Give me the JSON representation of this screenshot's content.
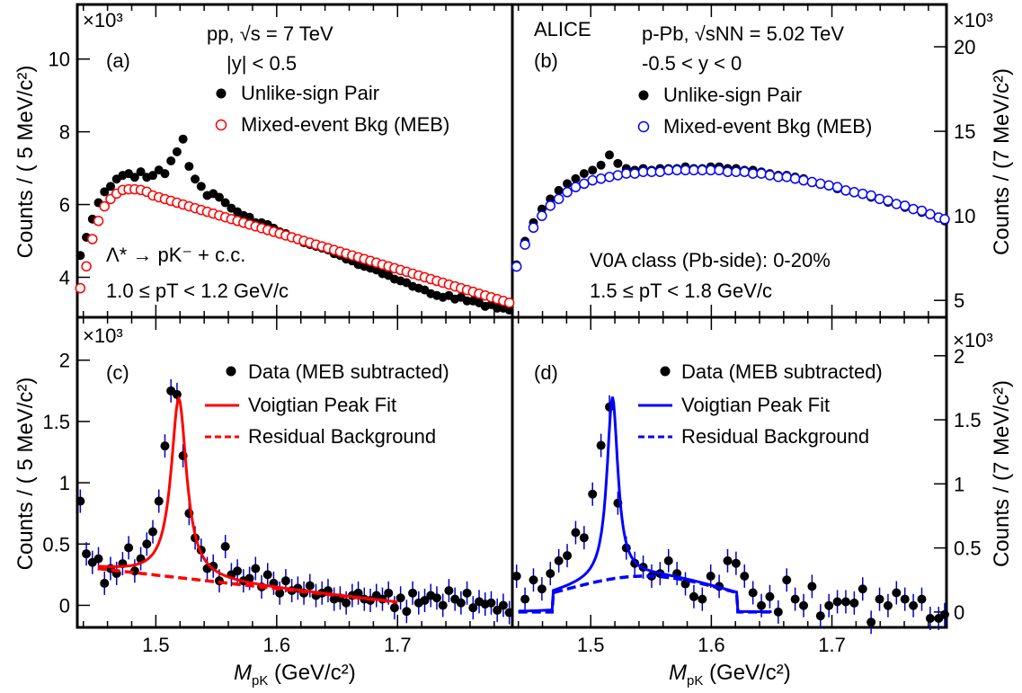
{
  "figure": {
    "experiment": "ALICE",
    "ylabel_left": "Counts / ( 5 MeV/c²)",
    "ylabel_right": "Counts / (7 MeV/c²)",
    "xlabel": "M_pK (GeV/c²)",
    "xlabel_main": "M",
    "xlabel_sub": "pK",
    "xlabel_unit": " (GeV/c²)",
    "yexp": "×10³"
  },
  "panels": {
    "a": {
      "tag": "(a)",
      "line1": "pp, √s = 7 TeV",
      "line2": "|y| < 0.5",
      "legend": [
        "Unlike-sign Pair",
        "Mixed-event Bkg (MEB)"
      ],
      "reaction": "Λ* → pK⁻ + c.c.",
      "pt_range": "1.0 ≤ pT < 1.2 GeV/c"
    },
    "b": {
      "tag": "(b)",
      "line1": "p-Pb, √sNN = 5.02 TeV",
      "line2": "-0.5 < y < 0",
      "legend": [
        "Unlike-sign Pair",
        "Mixed-event Bkg (MEB)"
      ],
      "centrality": "V0A class (Pb-side): 0-20%",
      "pt_range": "1.5 ≤ pT < 1.8 GeV/c"
    },
    "c": {
      "tag": "(c)",
      "legend": [
        "Data (MEB subtracted)",
        "Voigtian Peak Fit",
        "Residual Background"
      ]
    },
    "d": {
      "tag": "(d)",
      "legend": [
        "Data (MEB subtracted)",
        "Voigtian Peak Fit",
        "Residual Background"
      ]
    }
  },
  "colors": {
    "pp": "#ff0000",
    "ppb": "#0000ff",
    "data": "#000000",
    "err": "#0000cc"
  },
  "chart_data": [
    {
      "panel": "a",
      "type": "scatter",
      "xlim": [
        1.435,
        1.795
      ],
      "ylim": [
        2.9,
        11.5
      ],
      "yunit": "x10^3",
      "yticks": [
        4,
        6,
        8,
        10
      ],
      "series": [
        {
          "name": "Unlike-sign Pair",
          "marker": "filled",
          "color": "#000000",
          "x": [
            1.4375,
            1.4425,
            1.4475,
            1.4525,
            1.4575,
            1.4625,
            1.4675,
            1.4725,
            1.4775,
            1.4825,
            1.4875,
            1.4925,
            1.4975,
            1.5025,
            1.5075,
            1.5125,
            1.5175,
            1.5225,
            1.5275,
            1.5325,
            1.5375,
            1.5425,
            1.5475,
            1.5525,
            1.5575,
            1.5625,
            1.5675,
            1.5725,
            1.5775,
            1.5825,
            1.5875,
            1.5925,
            1.5975,
            1.6025,
            1.6075,
            1.6125,
            1.6175,
            1.6225,
            1.6275,
            1.6325,
            1.6375,
            1.6425,
            1.6475,
            1.6525,
            1.6575,
            1.6625,
            1.6675,
            1.6725,
            1.6775,
            1.6825,
            1.6875,
            1.6925,
            1.6975,
            1.7025,
            1.7075,
            1.7125,
            1.7175,
            1.7225,
            1.7275,
            1.7325,
            1.7375,
            1.7425,
            1.7475,
            1.7525,
            1.7575,
            1.7625,
            1.7675,
            1.7725,
            1.7775,
            1.7825,
            1.7875,
            1.7925
          ],
          "y": [
            4.6,
            5.1,
            5.6,
            6.05,
            6.35,
            6.5,
            6.7,
            6.8,
            6.85,
            6.75,
            6.9,
            6.75,
            6.8,
            6.95,
            6.85,
            7.2,
            7.45,
            7.8,
            7.05,
            6.7,
            6.5,
            6.25,
            6.3,
            6.2,
            6.05,
            5.9,
            5.8,
            5.7,
            5.65,
            5.5,
            5.5,
            5.45,
            5.35,
            5.25,
            5.2,
            5.1,
            5.05,
            4.95,
            4.9,
            4.85,
            4.8,
            4.75,
            4.65,
            4.6,
            4.5,
            4.45,
            4.35,
            4.3,
            4.25,
            4.2,
            4.1,
            4.05,
            3.95,
            3.9,
            3.85,
            3.75,
            3.7,
            3.65,
            3.55,
            3.5,
            3.45,
            3.5,
            3.4,
            3.45,
            3.35,
            3.35,
            3.3,
            3.2,
            3.25,
            3.15,
            3.15,
            3.1
          ]
        },
        {
          "name": "Mixed-event Bkg (MEB)",
          "marker": "open",
          "color": "#ff0000",
          "x": [
            1.4375,
            1.4425,
            1.4475,
            1.4525,
            1.4575,
            1.4625,
            1.4675,
            1.4725,
            1.4775,
            1.4825,
            1.4875,
            1.4925,
            1.4975,
            1.5025,
            1.5075,
            1.5125,
            1.5175,
            1.5225,
            1.5275,
            1.5325,
            1.5375,
            1.5425,
            1.5475,
            1.5525,
            1.5575,
            1.5625,
            1.5675,
            1.5725,
            1.5775,
            1.5825,
            1.5875,
            1.5925,
            1.5975,
            1.6025,
            1.6075,
            1.6125,
            1.6175,
            1.6225,
            1.6275,
            1.6325,
            1.6375,
            1.6425,
            1.6475,
            1.6525,
            1.6575,
            1.6625,
            1.6675,
            1.6725,
            1.6775,
            1.6825,
            1.6875,
            1.6925,
            1.6975,
            1.7025,
            1.7075,
            1.7125,
            1.7175,
            1.7225,
            1.7275,
            1.7325,
            1.7375,
            1.7425,
            1.7475,
            1.7525,
            1.7575,
            1.7625,
            1.7675,
            1.7725,
            1.7775,
            1.7825,
            1.7875,
            1.7925
          ],
          "y": [
            3.7,
            4.3,
            5.05,
            5.55,
            5.95,
            6.15,
            6.3,
            6.4,
            6.42,
            6.42,
            6.4,
            6.35,
            6.25,
            6.2,
            6.15,
            6.1,
            6.05,
            6.0,
            5.95,
            5.9,
            5.85,
            5.8,
            5.75,
            5.7,
            5.65,
            5.6,
            5.55,
            5.5,
            5.45,
            5.4,
            5.35,
            5.3,
            5.25,
            5.2,
            5.15,
            5.1,
            5.05,
            5.0,
            4.95,
            4.9,
            4.85,
            4.8,
            4.75,
            4.7,
            4.65,
            4.6,
            4.55,
            4.5,
            4.45,
            4.4,
            4.35,
            4.3,
            4.25,
            4.2,
            4.15,
            4.1,
            4.05,
            4.0,
            3.95,
            3.9,
            3.85,
            3.8,
            3.75,
            3.7,
            3.65,
            3.6,
            3.55,
            3.5,
            3.45,
            3.4,
            3.35,
            3.3
          ]
        }
      ]
    },
    {
      "panel": "b",
      "type": "scatter",
      "xlim": [
        1.435,
        1.795
      ],
      "ylim": [
        4.0,
        22.5
      ],
      "yunit": "x10^3",
      "yticks": [
        5,
        10,
        15,
        20
      ],
      "series": [
        {
          "name": "Unlike-sign Pair",
          "marker": "filled",
          "color": "#000000",
          "x": [
            1.4385,
            1.4455,
            1.4525,
            1.4595,
            1.4665,
            1.4735,
            1.4805,
            1.4875,
            1.4945,
            1.5015,
            1.5085,
            1.5155,
            1.5225,
            1.5295,
            1.5365,
            1.5435,
            1.5505,
            1.5575,
            1.5645,
            1.5715,
            1.5785,
            1.5855,
            1.5925,
            1.5995,
            1.6065,
            1.6135,
            1.6205,
            1.6275,
            1.6345,
            1.6415,
            1.6485,
            1.6555,
            1.6625,
            1.6695,
            1.6765,
            1.6835,
            1.6905,
            1.6975,
            1.7045,
            1.7115,
            1.7185,
            1.7255,
            1.7325,
            1.7395,
            1.7465,
            1.7535,
            1.7605,
            1.7675,
            1.7745,
            1.7815,
            1.7885,
            1.7935
          ],
          "y": [
            7.1,
            8.5,
            9.6,
            10.4,
            11.0,
            11.5,
            11.9,
            12.2,
            12.5,
            12.7,
            13.0,
            13.6,
            13.1,
            12.8,
            12.7,
            12.8,
            12.7,
            12.8,
            12.8,
            12.8,
            12.9,
            12.8,
            12.8,
            12.9,
            12.9,
            12.8,
            12.8,
            12.7,
            12.7,
            12.6,
            12.5,
            12.4,
            12.4,
            12.3,
            12.2,
            12.0,
            11.9,
            11.8,
            11.6,
            11.5,
            11.4,
            11.3,
            11.1,
            11.0,
            10.8,
            10.7,
            10.5,
            10.4,
            10.2,
            10.1,
            9.9,
            9.7
          ]
        },
        {
          "name": "Mixed-event Bkg (MEB)",
          "marker": "open",
          "color": "#0000ff",
          "x": [
            1.4385,
            1.4455,
            1.4525,
            1.4595,
            1.4665,
            1.4735,
            1.4805,
            1.4875,
            1.4945,
            1.5015,
            1.5085,
            1.5155,
            1.5225,
            1.5295,
            1.5365,
            1.5435,
            1.5505,
            1.5575,
            1.5645,
            1.5715,
            1.5785,
            1.5855,
            1.5925,
            1.5995,
            1.6065,
            1.6135,
            1.6205,
            1.6275,
            1.6345,
            1.6415,
            1.6485,
            1.6555,
            1.6625,
            1.6695,
            1.6765,
            1.6835,
            1.6905,
            1.6975,
            1.7045,
            1.7115,
            1.7185,
            1.7255,
            1.7325,
            1.7395,
            1.7465,
            1.7535,
            1.7605,
            1.7675,
            1.7745,
            1.7815,
            1.7885,
            1.7935
          ],
          "y": [
            7.0,
            8.3,
            9.3,
            10.0,
            10.6,
            11.0,
            11.4,
            11.7,
            11.9,
            12.1,
            12.2,
            12.3,
            12.4,
            12.5,
            12.5,
            12.6,
            12.6,
            12.6,
            12.7,
            12.7,
            12.7,
            12.7,
            12.7,
            12.7,
            12.7,
            12.6,
            12.6,
            12.6,
            12.5,
            12.5,
            12.4,
            12.3,
            12.3,
            12.2,
            12.1,
            12.0,
            11.9,
            11.8,
            11.7,
            11.5,
            11.4,
            11.3,
            11.2,
            11.0,
            10.9,
            10.7,
            10.6,
            10.4,
            10.3,
            10.1,
            9.9,
            9.8
          ]
        }
      ]
    },
    {
      "panel": "c",
      "type": "scatter",
      "xlim": [
        1.435,
        1.795
      ],
      "ylim": [
        -0.18,
        2.35
      ],
      "yunit": "x10^3",
      "yticks": [
        0,
        0.5,
        1,
        1.5,
        2
      ],
      "series": [
        {
          "name": "Data (MEB subtracted)",
          "marker": "filled",
          "color": "#000000",
          "x": [
            1.4375,
            1.4425,
            1.4475,
            1.4525,
            1.4575,
            1.4625,
            1.4675,
            1.4725,
            1.4775,
            1.4825,
            1.4875,
            1.4925,
            1.4975,
            1.5025,
            1.5075,
            1.5125,
            1.5175,
            1.5225,
            1.5275,
            1.5325,
            1.5375,
            1.5425,
            1.5475,
            1.5525,
            1.5575,
            1.5625,
            1.5675,
            1.5725,
            1.5775,
            1.5825,
            1.5875,
            1.5925,
            1.5975,
            1.6025,
            1.6075,
            1.6125,
            1.6175,
            1.6225,
            1.6275,
            1.6325,
            1.6375,
            1.6425,
            1.6475,
            1.6525,
            1.6575,
            1.6625,
            1.6675,
            1.6725,
            1.6775,
            1.6825,
            1.6875,
            1.6925,
            1.6975,
            1.7025,
            1.7075,
            1.7125,
            1.7175,
            1.7225,
            1.7275,
            1.7325,
            1.7375,
            1.7425,
            1.7475,
            1.7525,
            1.7575,
            1.7625,
            1.7675,
            1.7725,
            1.7775,
            1.7825,
            1.7875,
            1.7925
          ],
          "y": [
            0.85,
            0.42,
            0.35,
            0.38,
            0.18,
            0.3,
            0.26,
            0.34,
            0.47,
            0.28,
            0.38,
            0.5,
            0.6,
            0.85,
            1.3,
            1.75,
            1.72,
            1.22,
            0.75,
            0.55,
            0.45,
            0.3,
            0.32,
            0.2,
            0.48,
            0.25,
            0.28,
            0.2,
            0.22,
            0.3,
            0.15,
            0.25,
            0.18,
            0.1,
            0.2,
            0.12,
            0.14,
            0.1,
            0.16,
            0.08,
            0.1,
            0.12,
            0.05,
            0.06,
            0.02,
            0.08,
            0.1,
            0.05,
            0.04,
            0.08,
            0.05,
            0.1,
            -0.02,
            0.06,
            -0.05,
            0.1,
            0.02,
            0.04,
            0.08,
            0.06,
            0.0,
            0.12,
            0.05,
            0.02,
            0.1,
            -0.02,
            0.03,
            0.01,
            0.02,
            -0.04,
            0.0,
            -0.06
          ]
        },
        {
          "name": "Voigtian Peak Fit",
          "color": "#ff0000",
          "style": "solid",
          "model": "voigt",
          "range": [
            1.452,
            1.7
          ],
          "mass": 1.519,
          "width": 0.0078,
          "amp": 1.46,
          "bkg": [
            0.3,
            0.025
          ]
        },
        {
          "name": "Residual Background",
          "color": "#ff0000",
          "style": "dashed",
          "range": [
            1.452,
            1.7
          ],
          "bkg": [
            0.3,
            0.025
          ]
        }
      ]
    },
    {
      "panel": "d",
      "type": "scatter",
      "xlim": [
        1.435,
        1.795
      ],
      "ylim": [
        -0.12,
        2.3
      ],
      "yunit": "x10^3",
      "yticks": [
        0,
        0.5,
        1,
        1.5,
        2
      ],
      "series": [
        {
          "name": "Data (MEB subtracted)",
          "marker": "filled",
          "color": "#000000",
          "x": [
            1.4385,
            1.4455,
            1.4525,
            1.4595,
            1.4665,
            1.4735,
            1.4805,
            1.4875,
            1.4945,
            1.5015,
            1.5085,
            1.5155,
            1.5225,
            1.5295,
            1.5365,
            1.5435,
            1.5505,
            1.5575,
            1.5645,
            1.5715,
            1.5785,
            1.5855,
            1.5925,
            1.5995,
            1.6065,
            1.6135,
            1.6205,
            1.6275,
            1.6345,
            1.6415,
            1.6485,
            1.6555,
            1.6625,
            1.6695,
            1.6765,
            1.6835,
            1.6905,
            1.6975,
            1.7045,
            1.7115,
            1.7185,
            1.7255,
            1.7325,
            1.7395,
            1.7465,
            1.7535,
            1.7605,
            1.7675,
            1.7745,
            1.7815,
            1.7885,
            1.7935
          ],
          "y": [
            0.28,
            0.1,
            0.25,
            0.18,
            0.3,
            0.4,
            0.44,
            0.62,
            0.58,
            0.92,
            1.3,
            1.6,
            0.85,
            0.5,
            0.38,
            0.35,
            0.28,
            0.3,
            0.4,
            0.3,
            0.22,
            0.12,
            0.1,
            0.28,
            0.2,
            0.4,
            0.38,
            0.28,
            0.15,
            0.05,
            0.12,
            0.0,
            0.25,
            0.1,
            0.05,
            0.2,
            -0.03,
            0.05,
            0.08,
            0.08,
            0.07,
            0.18,
            -0.08,
            0.1,
            0.05,
            0.15,
            0.1,
            0.05,
            0.1,
            -0.05,
            -0.05,
            -0.02
          ]
        },
        {
          "name": "Voigtian Peak Fit",
          "color": "#0000ff",
          "style": "solid",
          "model": "voigt",
          "range": [
            1.44,
            1.65
          ],
          "mass": 1.518,
          "width": 0.0055,
          "amp": 1.42,
          "bkg": "hump"
        },
        {
          "name": "Residual Background",
          "color": "#0000ff",
          "style": "dashed",
          "range": [
            1.44,
            1.65
          ],
          "bkg": "hump"
        }
      ]
    }
  ]
}
